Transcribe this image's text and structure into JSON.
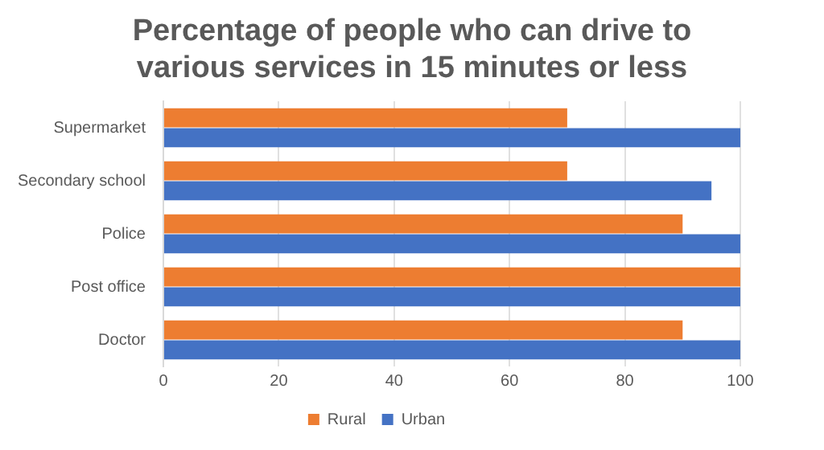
{
  "chart_data": {
    "type": "bar",
    "orientation": "horizontal",
    "title": "Percentage of people who can drive to various services in 15 minutes or less",
    "categories": [
      "Supermarket",
      "Secondary school",
      "Police",
      "Post office",
      "Doctor"
    ],
    "series": [
      {
        "name": "Rural",
        "color": "#ed7d31",
        "values": [
          70,
          70,
          90,
          100,
          90
        ]
      },
      {
        "name": "Urban",
        "color": "#4472c4",
        "values": [
          100,
          95,
          100,
          100,
          100
        ]
      }
    ],
    "xlim": [
      0,
      100
    ],
    "xticks": [
      0,
      20,
      40,
      60,
      80,
      100
    ],
    "grid": "x",
    "legend": "bottom"
  }
}
